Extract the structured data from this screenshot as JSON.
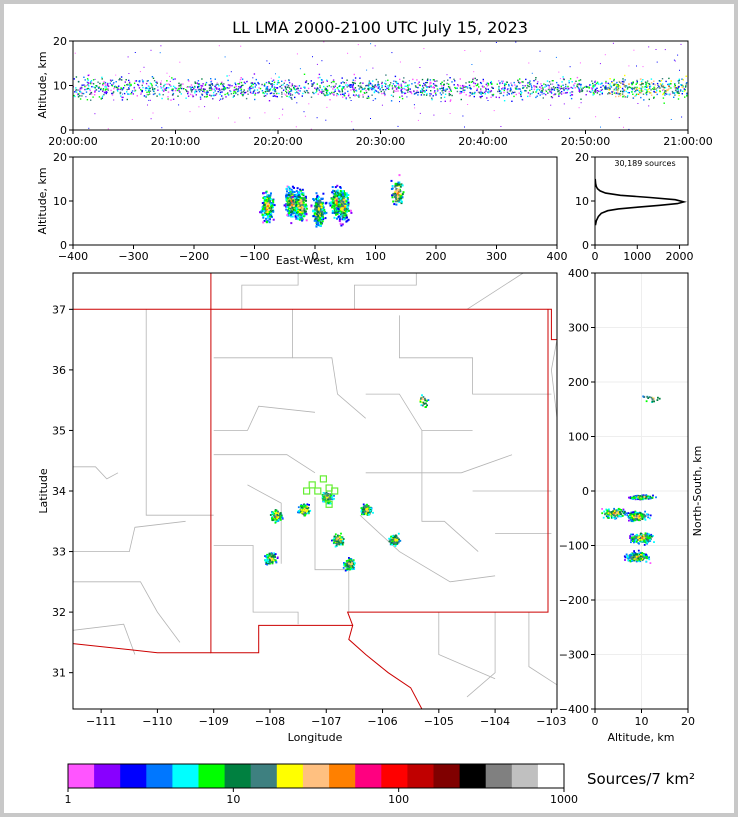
{
  "figure": {
    "title": "LL LMA 2000-2100 UTC July 15, 2023",
    "colorbar_label": "Sources/7 km²"
  },
  "colors": {
    "colorbar": [
      "#ff55ff",
      "#8800ff",
      "#0000ff",
      "#0077ff",
      "#00ffff",
      "#00ff00",
      "#008040",
      "#3e8080",
      "#ffff00",
      "#ffc080",
      "#ff8000",
      "#ff0080",
      "#ff0000",
      "#c00000",
      "#800000",
      "#000000",
      "#808080",
      "#c0c0c0",
      "#ffffff"
    ],
    "state_border": "#cc0000",
    "county_lines": "#b4b4b4",
    "station_marker": "#66ee33"
  },
  "chart_data": [
    {
      "id": "time_height",
      "type": "heatmap",
      "xlabel": "",
      "ylabel": "Altitude, km",
      "xlim": [
        "20:00:00",
        "21:00:00"
      ],
      "ylim": [
        0,
        20
      ],
      "x_ticks": [
        "20:00:00",
        "20:10:00",
        "20:20:00",
        "20:30:00",
        "20:40:00",
        "20:50:00",
        "21:00:00"
      ],
      "y_ticks": [
        0,
        10,
        20
      ],
      "band_altitude_km": [
        6,
        13
      ],
      "densest_band_time": [
        "20:52:00",
        "21:00:00"
      ]
    },
    {
      "id": "ew_height",
      "type": "heatmap",
      "xlabel": "East-West, km",
      "ylabel": "Altitude, km",
      "xlim": [
        -400,
        400
      ],
      "ylim": [
        0,
        20
      ],
      "x_ticks": [
        -400,
        -300,
        -200,
        -100,
        0,
        100,
        200,
        300,
        400
      ],
      "y_ticks": [
        0,
        10,
        20
      ],
      "clusters": [
        {
          "x": -80,
          "y": 9
        },
        {
          "x": -40,
          "y": 10
        },
        {
          "x": -25,
          "y": 9
        },
        {
          "x": 5,
          "y": 8
        },
        {
          "x": 35,
          "y": 10
        },
        {
          "x": 45,
          "y": 9
        },
        {
          "x": 135,
          "y": 12
        }
      ]
    },
    {
      "id": "height_histogram",
      "type": "line",
      "annotation": "30,189 sources",
      "xlim": [
        0,
        2200
      ],
      "ylim": [
        0,
        20
      ],
      "x_ticks": [
        0,
        1000,
        2000
      ],
      "y_ticks": [
        0,
        10,
        20
      ],
      "x": [
        10,
        30,
        80,
        150,
        300,
        550,
        1000,
        1500,
        1950,
        2100,
        1900,
        1300,
        600,
        250,
        120,
        60,
        30,
        15,
        5
      ],
      "y": [
        4.5,
        5.5,
        6.5,
        7.2,
        7.8,
        8.2,
        8.6,
        9.0,
        9.4,
        9.8,
        10.3,
        10.8,
        11.3,
        11.8,
        12.3,
        12.8,
        13.3,
        14,
        15
      ]
    },
    {
      "id": "plan_view",
      "type": "heatmap",
      "xlabel": "Longitude",
      "ylabel": "Latitude",
      "xlim": [
        -111.5,
        -102.9
      ],
      "ylim": [
        30.4,
        37.6
      ],
      "x_ticks": [
        -111,
        -110,
        -109,
        -108,
        -107,
        -106,
        -105,
        -104,
        -103
      ],
      "y_ticks": [
        31,
        32,
        33,
        34,
        35,
        36,
        37
      ],
      "clusters": [
        {
          "lon": -107.9,
          "lat": 33.6
        },
        {
          "lon": -107.4,
          "lat": 33.7
        },
        {
          "lon": -108.0,
          "lat": 32.9
        },
        {
          "lon": -107.0,
          "lat": 33.9
        },
        {
          "lon": -106.8,
          "lat": 33.2
        },
        {
          "lon": -106.6,
          "lat": 32.8
        },
        {
          "lon": -106.3,
          "lat": 33.7
        },
        {
          "lon": -105.8,
          "lat": 33.2
        },
        {
          "lon": -105.3,
          "lat": 35.5
        }
      ],
      "stations": [
        {
          "lon": -107.05,
          "lat": 34.2
        },
        {
          "lon": -107.25,
          "lat": 34.1
        },
        {
          "lon": -107.35,
          "lat": 34.0
        },
        {
          "lon": -107.15,
          "lat": 34.0
        },
        {
          "lon": -106.95,
          "lat": 34.05
        },
        {
          "lon": -106.85,
          "lat": 34.0
        },
        {
          "lon": -106.95,
          "lat": 33.78
        }
      ]
    },
    {
      "id": "ns_height",
      "type": "heatmap",
      "xlabel": "Altitude, km",
      "ylabel": "North-South, km",
      "xlim": [
        0,
        20
      ],
      "ylim": [
        -400,
        400
      ],
      "x_ticks": [
        0,
        10,
        20
      ],
      "y_ticks": [
        -400,
        -300,
        -200,
        -100,
        0,
        100,
        200,
        300,
        400
      ],
      "clusters": [
        {
          "x": 10,
          "y": -10
        },
        {
          "x": 4,
          "y": -40
        },
        {
          "x": 9,
          "y": -45
        },
        {
          "x": 10,
          "y": -85
        },
        {
          "x": 9,
          "y": -120
        },
        {
          "x": 12,
          "y": 170
        }
      ]
    },
    {
      "id": "colorbar",
      "type": "heatmap",
      "scale": "log",
      "xlim": [
        1,
        1000
      ],
      "ticks": [
        1,
        10,
        100,
        1000
      ]
    }
  ]
}
